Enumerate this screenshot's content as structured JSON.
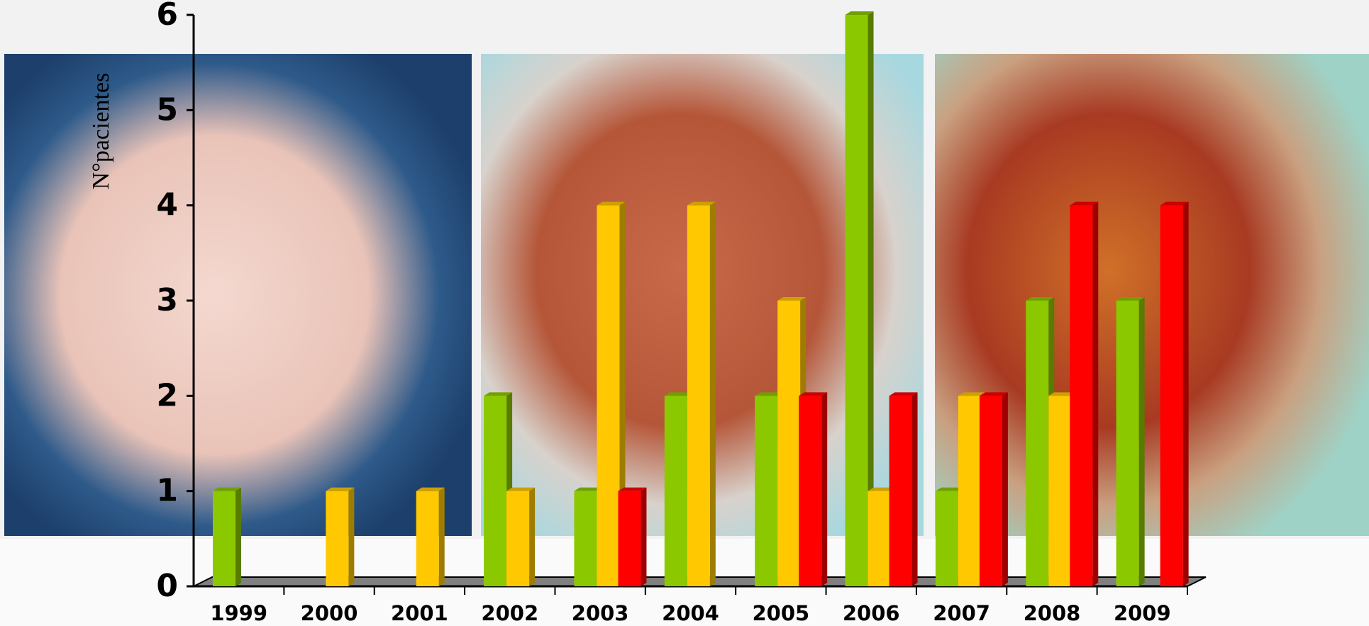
{
  "chart_data": {
    "type": "bar3d",
    "y_label": "N°pacientes",
    "categories": [
      "1999",
      "2000",
      "2001",
      "2002",
      "2003",
      "2004",
      "2005",
      "2006",
      "2007",
      "2008",
      "2009"
    ],
    "series": [
      {
        "color": "#8cc800",
        "values": [
          1,
          null,
          null,
          2,
          1,
          2,
          2,
          6,
          1,
          3,
          3
        ]
      },
      {
        "color": "#ffc800",
        "values": [
          null,
          1,
          1,
          1,
          4,
          4,
          3,
          1,
          2,
          2,
          null
        ]
      },
      {
        "color": "#ff0000",
        "values": [
          null,
          null,
          null,
          null,
          1,
          null,
          2,
          2,
          2,
          4,
          4
        ]
      }
    ],
    "ylim": [
      0,
      6
    ],
    "yticks": [
      0,
      1,
      2,
      3,
      4,
      5,
      6
    ]
  }
}
